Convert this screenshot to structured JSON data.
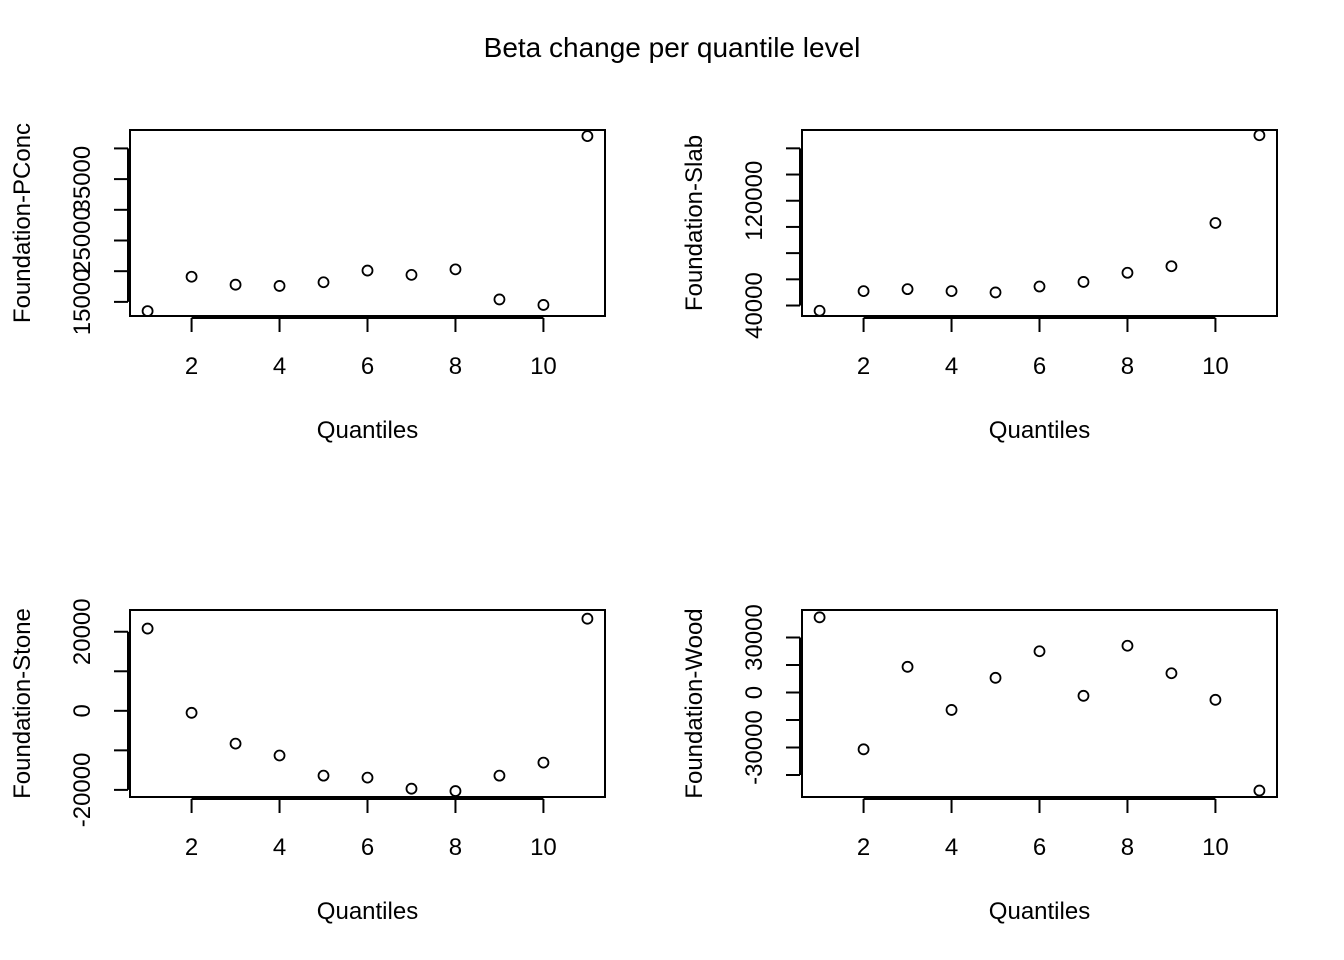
{
  "title": "Beta change per quantile level",
  "chart_data": [
    {
      "type": "scatter",
      "xlabel": "Quantiles",
      "ylabel": "Foundation-PConc",
      "x": [
        1,
        2,
        3,
        4,
        5,
        6,
        7,
        8,
        9,
        10,
        11
      ],
      "y": [
        13500,
        19100,
        17800,
        17600,
        18200,
        20100,
        19400,
        20300,
        15400,
        14500,
        42000
      ],
      "xlim": [
        0.6,
        11.4
      ],
      "ylim": [
        12700,
        43000
      ],
      "xticks": [
        2,
        4,
        6,
        8,
        10
      ],
      "yticks": [
        15000,
        20000,
        25000,
        30000,
        35000,
        40000
      ],
      "ytick_labels": [
        "15000",
        "",
        "25000",
        "",
        "35000",
        ""
      ]
    },
    {
      "type": "scatter",
      "xlabel": "Quantiles",
      "ylabel": "Foundation-Slab",
      "x": [
        1,
        2,
        3,
        4,
        5,
        6,
        7,
        8,
        9,
        10,
        11
      ],
      "y": [
        36000,
        51000,
        52500,
        51000,
        50000,
        54500,
        58000,
        65000,
        70000,
        103000,
        170000
      ],
      "xlim": [
        0.6,
        11.4
      ],
      "ylim": [
        32000,
        174000
      ],
      "xticks": [
        2,
        4,
        6,
        8,
        10
      ],
      "yticks": [
        40000,
        60000,
        80000,
        100000,
        120000,
        140000,
        160000
      ],
      "ytick_labels": [
        "40000",
        "",
        "",
        "",
        "120000",
        "",
        ""
      ]
    },
    {
      "type": "scatter",
      "xlabel": "Quantiles",
      "ylabel": "Foundation-Stone",
      "x": [
        1,
        2,
        3,
        4,
        5,
        6,
        7,
        8,
        9,
        10,
        11
      ],
      "y": [
        20800,
        -500,
        -8300,
        -11300,
        -16400,
        -16900,
        -19700,
        -20300,
        -16400,
        -13100,
        23300
      ],
      "xlim": [
        0.6,
        11.4
      ],
      "ylim": [
        -21800,
        25500
      ],
      "xticks": [
        2,
        4,
        6,
        8,
        10
      ],
      "yticks": [
        -20000,
        -10000,
        0,
        10000,
        20000
      ],
      "ytick_labels": [
        "-20000",
        "",
        "0",
        "",
        "20000"
      ]
    },
    {
      "type": "scatter",
      "xlabel": "Quantiles",
      "ylabel": "Foundation-Wood",
      "x": [
        1,
        2,
        3,
        4,
        5,
        6,
        7,
        8,
        9,
        10,
        11
      ],
      "y": [
        41000,
        -31000,
        14000,
        -9500,
        8000,
        22500,
        -1800,
        25500,
        10500,
        -4000,
        -53500
      ],
      "xlim": [
        0.6,
        11.4
      ],
      "ylim": [
        -57000,
        45000
      ],
      "xticks": [
        2,
        4,
        6,
        8,
        10
      ],
      "yticks": [
        -45000,
        -30000,
        -15000,
        0,
        15000,
        30000
      ],
      "ytick_labels": [
        "",
        "-30000",
        "",
        "0",
        "",
        "30000"
      ]
    }
  ]
}
